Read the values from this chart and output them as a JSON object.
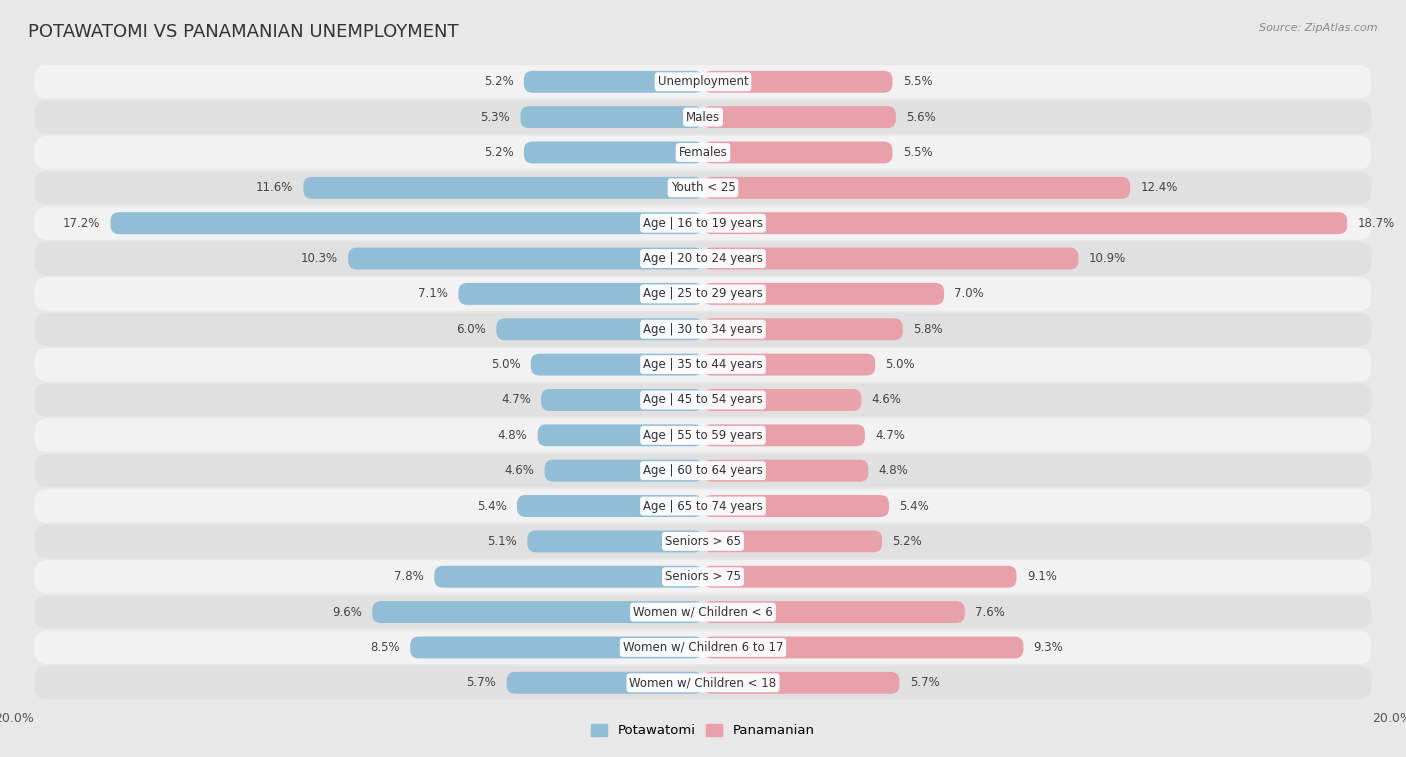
{
  "title": "POTAWATOMI VS PANAMANIAN UNEMPLOYMENT",
  "source": "Source: ZipAtlas.com",
  "categories": [
    "Unemployment",
    "Males",
    "Females",
    "Youth < 25",
    "Age | 16 to 19 years",
    "Age | 20 to 24 years",
    "Age | 25 to 29 years",
    "Age | 30 to 34 years",
    "Age | 35 to 44 years",
    "Age | 45 to 54 years",
    "Age | 55 to 59 years",
    "Age | 60 to 64 years",
    "Age | 65 to 74 years",
    "Seniors > 65",
    "Seniors > 75",
    "Women w/ Children < 6",
    "Women w/ Children 6 to 17",
    "Women w/ Children < 18"
  ],
  "potawatomi": [
    5.2,
    5.3,
    5.2,
    11.6,
    17.2,
    10.3,
    7.1,
    6.0,
    5.0,
    4.7,
    4.8,
    4.6,
    5.4,
    5.1,
    7.8,
    9.6,
    8.5,
    5.7
  ],
  "panamanian": [
    5.5,
    5.6,
    5.5,
    12.4,
    18.7,
    10.9,
    7.0,
    5.8,
    5.0,
    4.6,
    4.7,
    4.8,
    5.4,
    5.2,
    9.1,
    7.6,
    9.3,
    5.7
  ],
  "potawatomi_color": "#92bdd6",
  "panamanian_color": "#e8a0aa",
  "xlim": 20.0,
  "background_color": "#e8e8e8",
  "row_bg_colors": [
    "#f2f2f2",
    "#e0e0e0"
  ],
  "title_fontsize": 13,
  "label_fontsize": 8.5,
  "value_fontsize": 8.5,
  "tick_fontsize": 9
}
